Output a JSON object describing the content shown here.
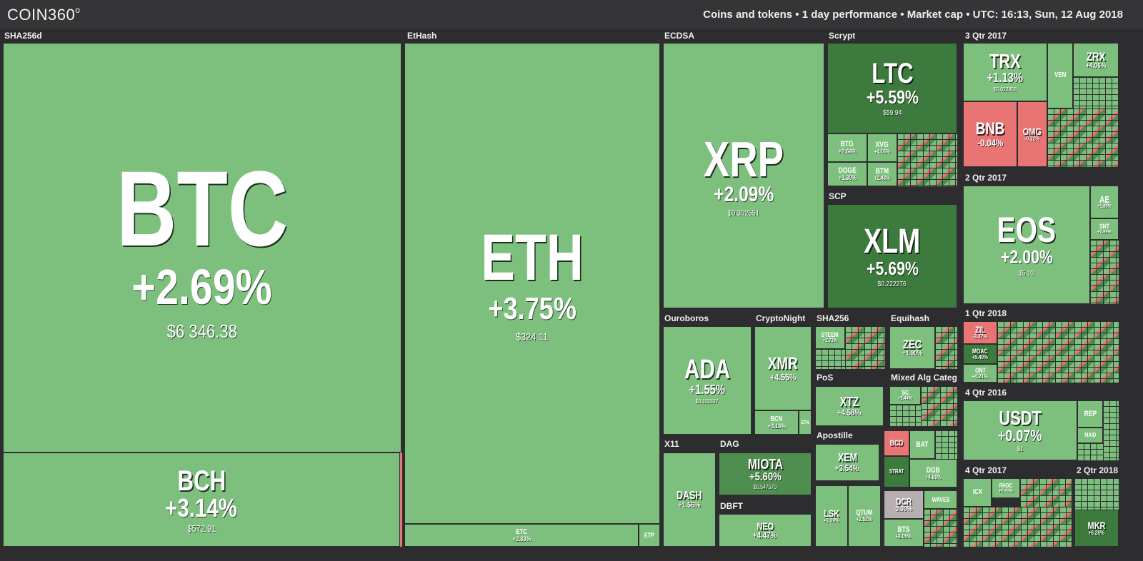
{
  "header": {
    "logo": "COIN360",
    "logo_mark": "o",
    "info": "Coins and tokens  •  1 day performance  •  Market cap  •  UTC: 16:13, Sun, 12 Aug 2018"
  },
  "colors": {
    "up_light": "#7dc07e",
    "up_mid": "#4e8f4f",
    "up_strong": "#3d7a3e",
    "down_light": "#e97474",
    "down_strong": "#c84848",
    "neutral": "#b8b0b0",
    "background": "#2d2d2f"
  },
  "groups": {
    "sha256d": "SHA256d",
    "ethash": "EtHash",
    "ecdsa": "ECDSA",
    "scrypt": "Scrypt",
    "q3_2017": "3 Qtr 2017",
    "scp": "SCP",
    "q2_2017a": "2 Qtr 2017",
    "ouroboros": "Ouroboros",
    "cryptonight": "CryptoNight",
    "sha256": "SHA256",
    "equihash": "Equihash",
    "q1_2018": "1 Qtr 2018",
    "pos": "PoS",
    "mixed": "Mixed Alg Catego",
    "q4_2016": "4 Qtr 2016",
    "x11": "X11",
    "dag": "DAG",
    "apostille": "Apostille",
    "dbft": "DBFT",
    "q4_2017": "4 Qtr 2017",
    "q2_2017b": "2 Qtr 2018"
  },
  "coins": {
    "btc": {
      "symbol": "BTC",
      "change": "+2.69%",
      "price": "$6 346.38"
    },
    "bch": {
      "symbol": "BCH",
      "change": "+3.14%",
      "price": "$572.91"
    },
    "eth": {
      "symbol": "ETH",
      "change": "+3.75%",
      "price": "$324.11"
    },
    "etc": {
      "symbol": "ETC",
      "change": "+2.33%",
      "price": ""
    },
    "etp": {
      "symbol": "ETP",
      "change": "",
      "price": ""
    },
    "xrp": {
      "symbol": "XRP",
      "change": "+2.09%",
      "price": "$0.302551"
    },
    "ltc": {
      "symbol": "LTC",
      "change": "+5.59%",
      "price": "$59.94"
    },
    "btg": {
      "symbol": "BTG",
      "change": "+2.64%",
      "price": ""
    },
    "xvg": {
      "symbol": "XVG",
      "change": "+4.16%",
      "price": ""
    },
    "doge": {
      "symbol": "DOGE",
      "change": "+1.30%",
      "price": ""
    },
    "btm": {
      "symbol": "BTM",
      "change": "+2.48%",
      "price": ""
    },
    "xlm": {
      "symbol": "XLM",
      "change": "+5.69%",
      "price": "$0.222276"
    },
    "trx": {
      "symbol": "TRX",
      "change": "+1.13%",
      "price": "$0.022858"
    },
    "ven": {
      "symbol": "VEN",
      "change": "",
      "price": ""
    },
    "zrx": {
      "symbol": "ZRX",
      "change": "+4.06%",
      "price": ""
    },
    "bnb": {
      "symbol": "BNB",
      "change": "-0.04%",
      "price": ""
    },
    "omg": {
      "symbol": "OMG",
      "change": "-0.32%",
      "price": ""
    },
    "eos": {
      "symbol": "EOS",
      "change": "+2.00%",
      "price": "$5.10"
    },
    "ae": {
      "symbol": "AE",
      "change": "+1.88%",
      "price": ""
    },
    "snt": {
      "symbol": "SNT",
      "change": "+2.95%",
      "price": ""
    },
    "ada": {
      "symbol": "ADA",
      "change": "+1.55%",
      "price": "$0.112837"
    },
    "xmr": {
      "symbol": "XMR",
      "change": "+4.55%",
      "price": ""
    },
    "bcn": {
      "symbol": "BCN",
      "change": "+3.16%",
      "price": ""
    },
    "etn": {
      "symbol": "ETN",
      "change": "",
      "price": ""
    },
    "steem": {
      "symbol": "STEEM",
      "change": "+2.73%",
      "price": ""
    },
    "zec": {
      "symbol": "ZEC",
      "change": "+1.90%",
      "price": ""
    },
    "zil": {
      "symbol": "ZIL",
      "change": "-3.37%",
      "price": ""
    },
    "moac": {
      "symbol": "MOAC",
      "change": "+5.40%",
      "price": ""
    },
    "ont": {
      "symbol": "ONT",
      "change": "+4.21%",
      "price": ""
    },
    "xtz": {
      "symbol": "XTZ",
      "change": "+4.58%",
      "price": ""
    },
    "sc": {
      "symbol": "SC",
      "change": "+3.44%",
      "price": ""
    },
    "usdt": {
      "symbol": "USDT",
      "change": "+0.07%",
      "price": "$1"
    },
    "rep": {
      "symbol": "REP",
      "change": "",
      "price": ""
    },
    "maid": {
      "symbol": "MAID",
      "change": "",
      "price": ""
    },
    "dash": {
      "symbol": "DASH",
      "change": "+1.56%",
      "price": ""
    },
    "miota": {
      "symbol": "MIOTA",
      "change": "+5.60%",
      "price": "$0.547570"
    },
    "xem": {
      "symbol": "XEM",
      "change": "+3.54%",
      "price": ""
    },
    "bcd": {
      "symbol": "BCD",
      "change": "",
      "price": ""
    },
    "bat": {
      "symbol": "BAT",
      "change": "",
      "price": ""
    },
    "strat": {
      "symbol": "STRAT",
      "change": "",
      "price": ""
    },
    "dgb": {
      "symbol": "DGB",
      "change": "+4.89%",
      "price": ""
    },
    "neo": {
      "symbol": "NEO",
      "change": "+4.47%",
      "price": ""
    },
    "lsk": {
      "symbol": "LSK",
      "change": "+3.29%",
      "price": ""
    },
    "qtum": {
      "symbol": "QTUM",
      "change": "+2.52%",
      "price": ""
    },
    "dcr": {
      "symbol": "DCR",
      "change": "0.00%",
      "price": ""
    },
    "waves": {
      "symbol": "WAVES",
      "change": "",
      "price": ""
    },
    "bts": {
      "symbol": "BTS",
      "change": "+3.05%",
      "price": ""
    },
    "icx": {
      "symbol": "ICX",
      "change": "",
      "price": ""
    },
    "rhoc": {
      "symbol": "RHOC",
      "change": "+0.61%",
      "price": ""
    },
    "mkr": {
      "symbol": "MKR",
      "change": "+6.26%",
      "price": ""
    }
  }
}
